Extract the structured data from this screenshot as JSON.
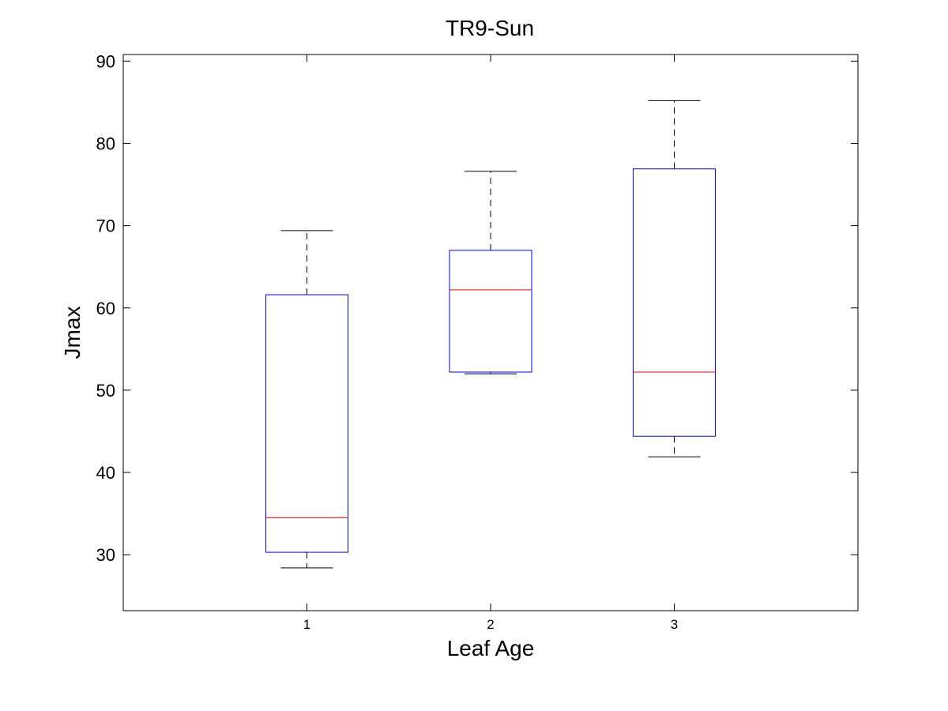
{
  "chart_data": {
    "type": "box",
    "title": "TR9-Sun",
    "xlabel": "Leaf Age",
    "ylabel": "Jmax",
    "categories": [
      "1",
      "2",
      "3"
    ],
    "ylim": [
      23.2,
      90.8
    ],
    "yticks": [
      30,
      40,
      50,
      60,
      70,
      80,
      90
    ],
    "grid": false,
    "boxes": [
      {
        "category": "1",
        "whisker_low": 28.4,
        "q1": 30.3,
        "median": 34.5,
        "q3": 61.6,
        "whisker_high": 69.4
      },
      {
        "category": "2",
        "whisker_low": 52.0,
        "q1": 52.2,
        "median": 62.2,
        "q3": 67.0,
        "whisker_high": 76.6
      },
      {
        "category": "3",
        "whisker_low": 41.9,
        "q1": 44.4,
        "median": 52.2,
        "q3": 76.9,
        "whisker_high": 85.2
      }
    ],
    "colors": {
      "box": "#0000ff",
      "median": "#ff0000",
      "whisker": "#000000"
    }
  }
}
